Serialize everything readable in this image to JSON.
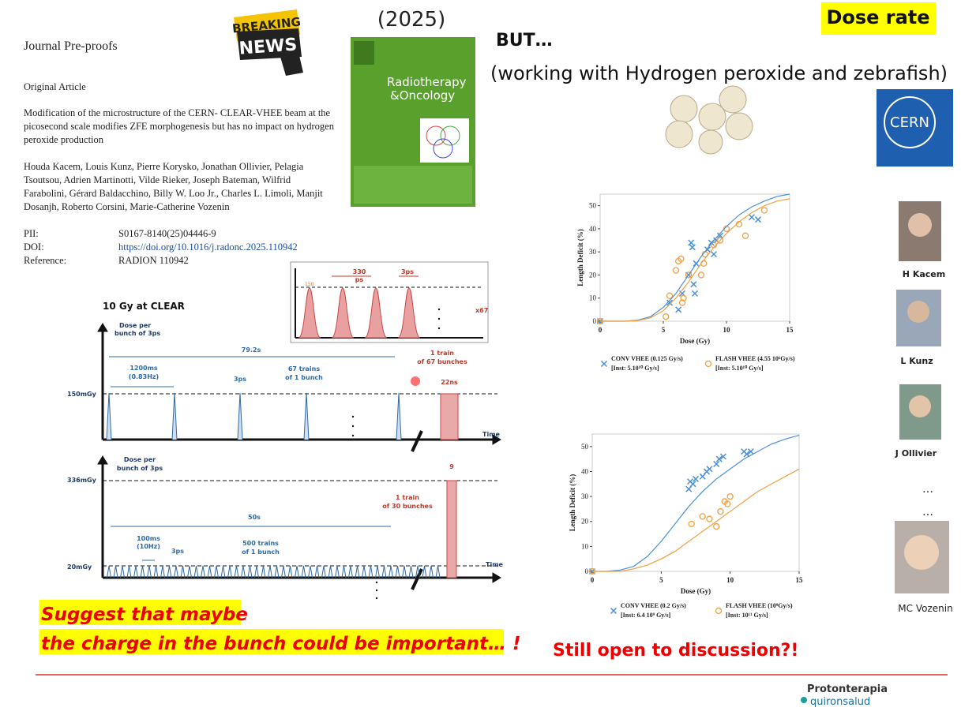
{
  "header": {
    "journal_label": "Journal Pre-proofs",
    "article_type": "Original Article",
    "title_lines": [
      "Modification of the microstructure of the CERN- CLEAR-VHEE beam at the",
      "picosecond scale modifies ZFE morphogenesis but has no impact on hydrogen",
      "peroxide production"
    ],
    "author_lines": [
      "Houda Kacem, Louis Kunz, Pierre Korysko, Jonathan Ollivier, Pelagia",
      "Tsoutsou, Adrien Martinotti, Vilde Rieker, Joseph Bateman, Wilfrid",
      "Farabolini, Gérard Baldacchino, Billy W. Loo Jr., Charles L. Limoli, Manjit",
      "Dosanjh, Roberto Corsini, Marie-Catherine Vozenin"
    ],
    "meta": [
      {
        "key": "PII:",
        "value": "S0167-8140(25)04446-9"
      },
      {
        "key": "DOI:",
        "value": "https://doi.org/10.1016/j.radonc.2025.110942"
      },
      {
        "key": "Reference:",
        "value": "RADION 110942"
      }
    ]
  },
  "badges": {
    "breaking_news": [
      "BREAKING",
      "NEWS"
    ],
    "year": "(2025)",
    "cover_title": [
      "Radiotherapy",
      "&Oncology"
    ],
    "dose_rate": "Dose rate",
    "but": "BUT…",
    "working_with": "(working with Hydrogen peroxide and zebrafish)",
    "cern": "CERN"
  },
  "timing": {
    "title": "10 Gy at CLEAR",
    "top": {
      "y_label": [
        "Dose per",
        "bunch of 3ps"
      ],
      "period": "79.2s",
      "interval": [
        "1200ms",
        "(0.83Hz)"
      ],
      "bunch_width": "3ps",
      "trains": [
        "67 trains",
        "of 1 bunch"
      ],
      "train": [
        "1 train",
        "of 67 bunches"
      ],
      "train_width": "22ns",
      "dose_level": "150mGy",
      "x_label": "Time"
    },
    "inset": {
      "spacing": [
        "330",
        "ps"
      ],
      "width": "3ps",
      "level": "150",
      "repeat": "x67"
    },
    "bottom": {
      "y_label": [
        "Dose per",
        "bunch of 3ps"
      ],
      "high_level": "336mGy",
      "train_width": "9",
      "train": [
        "1 train",
        "of 30 bunches"
      ],
      "period": "50s",
      "interval": [
        "100ms",
        "(10Hz)"
      ],
      "bunch_width": "3ps",
      "trains": [
        "500 trains",
        "of 1 bunch"
      ],
      "dose_level": "20mGy",
      "x_label": "Time"
    }
  },
  "chart_data": [
    {
      "type": "scatter",
      "x_label": "Dose (Gy)",
      "y_label": "Length Deficit (%)",
      "xlim": [
        0,
        15
      ],
      "ylim": [
        0,
        55
      ],
      "xticks": [
        0,
        5,
        10,
        15
      ],
      "yticks": [
        0,
        10,
        20,
        30,
        40,
        50
      ],
      "series": [
        {
          "name": "CONV VHEE (0.125 Gy/s)",
          "legend_note": "[Inst: 5.10¹⁰ Gy/s]",
          "color": "#4a90d9",
          "marker": "x",
          "x": [
            0,
            5.5,
            6.2,
            6.5,
            7,
            7.2,
            7.3,
            7.4,
            7.5,
            7.6,
            8.5,
            8.8,
            9,
            9.2,
            9.5,
            12,
            12.5
          ],
          "values": [
            0,
            8,
            5,
            12,
            20,
            34,
            32,
            16,
            12,
            25,
            31,
            34,
            29,
            35,
            37,
            45,
            44
          ]
        },
        {
          "name": "FLASH VHEE (4.55 10⁶Gy/s)",
          "legend_note": "[Inst: 5.10¹⁰ Gy/s]",
          "color": "#f0a040",
          "marker": "o",
          "x": [
            0,
            5.2,
            5.5,
            6,
            6.2,
            6.4,
            6.5,
            6.6,
            7,
            8,
            8.2,
            8.3,
            9,
            9.5,
            10,
            11,
            11.5,
            13
          ],
          "values": [
            0,
            2,
            11,
            22,
            26,
            27,
            8,
            10,
            20,
            20,
            25,
            29,
            33,
            35,
            40,
            42,
            37,
            48
          ]
        },
        {
          "type": "line",
          "color": "#4a90d9",
          "x": [
            0,
            1,
            2,
            3,
            4,
            5,
            6,
            7,
            8,
            9,
            10,
            11,
            12,
            13,
            14,
            15
          ],
          "values": [
            0,
            0,
            0,
            0.5,
            2,
            6,
            12,
            20,
            28,
            35,
            41,
            46,
            49.5,
            52,
            54,
            55
          ]
        },
        {
          "type": "line",
          "color": "#f0a040",
          "x": [
            0,
            1,
            2,
            3,
            4,
            5,
            6,
            7,
            8,
            9,
            10,
            11,
            12,
            13,
            14,
            15
          ],
          "values": [
            0,
            0,
            0,
            0.3,
            1.5,
            4.5,
            10,
            17,
            25,
            32,
            38,
            43,
            47,
            50,
            52,
            53
          ]
        }
      ]
    },
    {
      "type": "scatter",
      "x_label": "Dose (Gy)",
      "y_label": "Length Deficit (%)",
      "xlim": [
        0,
        15
      ],
      "ylim": [
        0,
        55
      ],
      "xticks": [
        0,
        5,
        10,
        15
      ],
      "yticks": [
        0,
        10,
        20,
        30,
        40,
        50
      ],
      "series": [
        {
          "name": "CONV VHEE (0.2 Gy/s)",
          "legend_note": "[Inst: 6.4 10⁹ Gy/s]",
          "color": "#4a90d9",
          "marker": "x",
          "x": [
            0,
            7,
            7.1,
            7.3,
            7.5,
            8,
            8.3,
            8.5,
            9,
            9.2,
            9.5,
            11,
            11.2,
            11.5
          ],
          "values": [
            0,
            33,
            36,
            35,
            37,
            38,
            40,
            41,
            43,
            45,
            46,
            48,
            47,
            48
          ]
        },
        {
          "name": "FLASH VHEE (10⁹Gy/s)",
          "legend_note": "[Inst: 10¹¹ Gy/s]",
          "color": "#f0a040",
          "marker": "o",
          "x": [
            0,
            7.2,
            8,
            8.5,
            9,
            9.3,
            9.6,
            9.8,
            10
          ],
          "values": [
            0,
            19,
            22,
            21,
            18,
            24,
            28,
            27,
            30
          ]
        },
        {
          "type": "line",
          "color": "#4a90d9",
          "x": [
            0,
            1,
            2,
            3,
            4,
            5,
            6,
            7,
            8,
            9,
            10,
            11,
            12,
            13,
            14,
            15
          ],
          "values": [
            0,
            0,
            0.5,
            2,
            6,
            12,
            19,
            26,
            32,
            37,
            41,
            45,
            48,
            51,
            53,
            54.5
          ]
        },
        {
          "type": "line",
          "color": "#f0a040",
          "x": [
            0,
            1,
            2,
            3,
            4,
            5,
            6,
            7,
            8,
            9,
            10,
            11,
            12,
            13,
            14,
            15
          ],
          "values": [
            0,
            0,
            0,
            1,
            2.5,
            5,
            8,
            12,
            16,
            20,
            24,
            28,
            32,
            35,
            38,
            41
          ]
        }
      ]
    }
  ],
  "people": [
    "H Kacem",
    "L Kunz",
    "J Ollivier",
    "…",
    "…",
    "MC Vozenin"
  ],
  "conclusions": {
    "charge_lines": [
      "Suggest that maybe",
      "the charge in the bunch could be important… !"
    ],
    "open": "Still open to discussion?!"
  },
  "footer": {
    "logo": [
      "Protonterapia",
      "quironsalud"
    ]
  }
}
